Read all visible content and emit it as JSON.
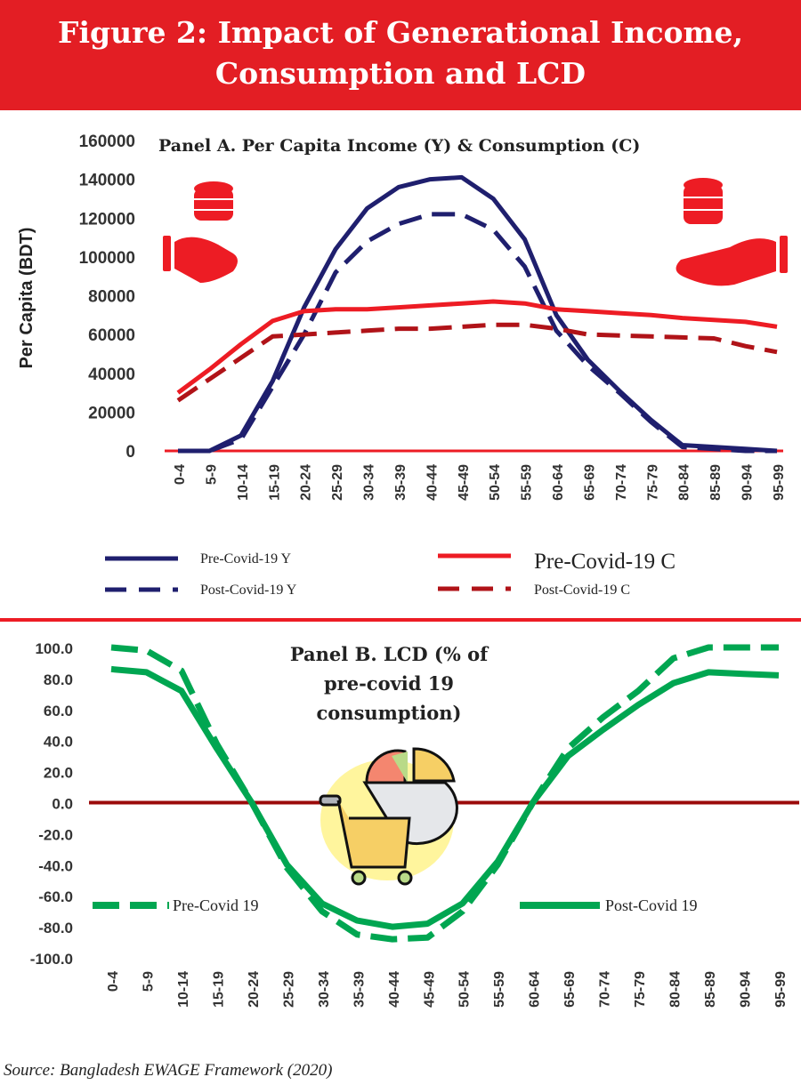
{
  "title_line1": "Figure 2: Impact of Generational Income,",
  "title_line2": "Consumption and LCD",
  "source": "Source: Bangladesh EWAGE Framework (2020)",
  "chart_data": [
    {
      "type": "line",
      "title": "Panel A. Per  Capita Income (Y) & Consumption (C)",
      "ylabel": "Per Capita (BDT)",
      "xlabel": "",
      "ylim": [
        0,
        160000
      ],
      "yticks": [
        "0",
        "20000",
        "40000",
        "60000",
        "80000",
        "100000",
        "120000",
        "140000",
        "160000"
      ],
      "categories": [
        "0-4",
        "5-9",
        "10-14",
        "15-19",
        "20-24",
        "25-29",
        "30-34",
        "35-39",
        "40-44",
        "45-49",
        "50-54",
        "55-59",
        "60-64",
        "65-69",
        "70-74",
        "75-79",
        "80-84",
        "85-89",
        "90-94",
        "95-99"
      ],
      "series": [
        {
          "name": "Pre-Covid-19 Y",
          "color": "#1f1f6e",
          "dash": false,
          "values": [
            0,
            0,
            8000,
            36000,
            74000,
            104000,
            125000,
            136000,
            140000,
            141000,
            130000,
            109000,
            70000,
            47000,
            31000,
            16000,
            3000,
            2000,
            1000,
            0
          ]
        },
        {
          "name": "Post-Covid-19 Y",
          "color": "#1f1f6e",
          "dash": true,
          "values": [
            0,
            0,
            6000,
            33000,
            60000,
            92000,
            108000,
            117000,
            122000,
            122000,
            114000,
            95000,
            62000,
            44000,
            30000,
            15000,
            2000,
            1000,
            0,
            0
          ]
        },
        {
          "name": "Pre-Covid-19 C",
          "color": "#ed1c24",
          "dash": false,
          "values": [
            30000,
            42000,
            55000,
            67000,
            72000,
            73000,
            73000,
            74000,
            75000,
            76000,
            77000,
            76000,
            73000,
            72000,
            71000,
            70000,
            68500,
            67500,
            66500,
            64000
          ]
        },
        {
          "name": "Post-Covid-19 C",
          "color": "#b01318",
          "dash": true,
          "values": [
            26000,
            37000,
            48000,
            59000,
            60000,
            61000,
            62000,
            63000,
            63000,
            64000,
            65000,
            65000,
            63000,
            60000,
            59500,
            59000,
            58500,
            58000,
            54000,
            51000
          ]
        }
      ],
      "legend": "bottom"
    },
    {
      "type": "line",
      "title_lines": [
        "Panel B. LCD (% of",
        "pre-covid 19",
        "consumption)"
      ],
      "ylim": [
        -100,
        100
      ],
      "yticks": [
        "-100.0",
        "-80.0",
        "-60.0",
        "-40.0",
        "-20.0",
        "0.0",
        "20.0",
        "40.0",
        "60.0",
        "80.0",
        "100.0"
      ],
      "categories": [
        "0-4",
        "5-9",
        "10-14",
        "15-19",
        "20-24",
        "25-29",
        "30-34",
        "35-39",
        "40-44",
        "45-49",
        "50-54",
        "55-59",
        "60-64",
        "65-69",
        "70-74",
        "75-79",
        "80-84",
        "85-89",
        "90-94",
        "95-99"
      ],
      "series": [
        {
          "name": "Pre-Covid 19",
          "color": "#00a651",
          "dash": true,
          "values": [
            100,
            98,
            85,
            38,
            0,
            -42,
            -70,
            -85,
            -88,
            -87,
            -70,
            -40,
            0,
            35,
            55,
            72,
            93,
            100,
            100,
            100
          ]
        },
        {
          "name": "Post-Covid 19",
          "color": "#00a651",
          "dash": false,
          "values": [
            86,
            84,
            72,
            35,
            0,
            -40,
            -65,
            -76,
            -80,
            -78,
            -65,
            -38,
            0,
            30,
            47,
            63,
            77,
            84,
            83,
            82
          ]
        }
      ],
      "legend": "middle"
    }
  ]
}
